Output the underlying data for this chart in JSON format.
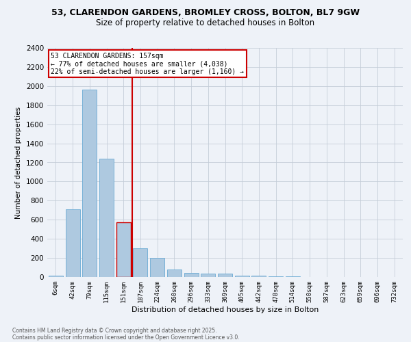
{
  "title": "53, CLARENDON GARDENS, BROMLEY CROSS, BOLTON, BL7 9GW",
  "subtitle": "Size of property relative to detached houses in Bolton",
  "xlabel": "Distribution of detached houses by size in Bolton",
  "ylabel": "Number of detached properties",
  "categories": [
    "6sqm",
    "42sqm",
    "79sqm",
    "115sqm",
    "151sqm",
    "187sqm",
    "224sqm",
    "260sqm",
    "296sqm",
    "333sqm",
    "369sqm",
    "405sqm",
    "442sqm",
    "478sqm",
    "514sqm",
    "550sqm",
    "587sqm",
    "623sqm",
    "659sqm",
    "696sqm",
    "732sqm"
  ],
  "values": [
    15,
    710,
    1960,
    1240,
    570,
    300,
    200,
    80,
    45,
    35,
    35,
    15,
    15,
    10,
    5,
    0,
    0,
    0,
    0,
    0,
    0
  ],
  "bar_color": "#aec9e0",
  "bar_edge_color": "#6aaad4",
  "highlight_bar_index": 4,
  "highlight_bar_color": "#aec9e0",
  "highlight_bar_edge_color": "#cc0000",
  "vline_color": "#cc0000",
  "ylim": [
    0,
    2400
  ],
  "yticks": [
    0,
    200,
    400,
    600,
    800,
    1000,
    1200,
    1400,
    1600,
    1800,
    2000,
    2200,
    2400
  ],
  "annotation_title": "53 CLARENDON GARDENS: 157sqm",
  "annotation_line1": "← 77% of detached houses are smaller (4,038)",
  "annotation_line2": "22% of semi-detached houses are larger (1,160) →",
  "footer1": "Contains HM Land Registry data © Crown copyright and database right 2025.",
  "footer2": "Contains public sector information licensed under the Open Government Licence v3.0.",
  "bg_color": "#eef2f8",
  "grid_color": "#c5cdd8"
}
